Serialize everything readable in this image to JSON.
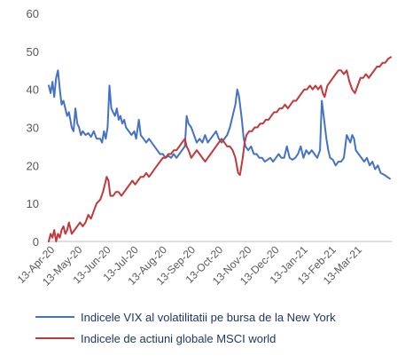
{
  "chart_data": {
    "type": "line",
    "ylim": [
      0,
      60
    ],
    "yticks": [
      0,
      10,
      20,
      30,
      40,
      50,
      60
    ],
    "grid": false,
    "legend_position": "bottom",
    "colors": {
      "vix": "#4472c4",
      "msci": "#c0393b",
      "axis": "#bfbfbf"
    },
    "x_tick_labels": [
      "13-Apr-20",
      "13-May-20",
      "13-Jun-20",
      "13-Jul-20",
      "13-Aug-20",
      "13-Sep-20",
      "13-Oct-20",
      "13-Nov-20",
      "13-Dec-20",
      "13-Jan-21",
      "13-Feb-21",
      "13-Mar-21"
    ],
    "series": [
      {
        "name": "Indicele VIX al volatilitatii pe bursa de la New York",
        "color": "#4472c4",
        "points": [
          [
            "2020-04-06",
            41
          ],
          [
            "2020-04-08",
            39
          ],
          [
            "2020-04-10",
            42
          ],
          [
            "2020-04-12",
            38
          ],
          [
            "2020-04-14",
            43
          ],
          [
            "2020-04-16",
            45
          ],
          [
            "2020-04-18",
            40
          ],
          [
            "2020-04-20",
            36
          ],
          [
            "2020-04-22",
            37
          ],
          [
            "2020-04-24",
            35
          ],
          [
            "2020-04-26",
            33
          ],
          [
            "2020-04-28",
            34
          ],
          [
            "2020-05-01",
            30
          ],
          [
            "2020-05-03",
            29
          ],
          [
            "2020-05-05",
            35
          ],
          [
            "2020-05-07",
            31
          ],
          [
            "2020-05-09",
            30
          ],
          [
            "2020-05-11",
            28
          ],
          [
            "2020-05-13",
            29
          ],
          [
            "2020-05-16",
            28
          ],
          [
            "2020-05-19",
            28.5
          ],
          [
            "2020-05-22",
            27.5
          ],
          [
            "2020-05-25",
            29
          ],
          [
            "2020-05-28",
            27
          ],
          [
            "2020-06-01",
            27
          ],
          [
            "2020-06-03",
            26
          ],
          [
            "2020-06-05",
            29
          ],
          [
            "2020-06-07",
            27
          ],
          [
            "2020-06-09",
            30
          ],
          [
            "2020-06-11",
            41
          ],
          [
            "2020-06-13",
            35
          ],
          [
            "2020-06-15",
            34
          ],
          [
            "2020-06-17",
            33
          ],
          [
            "2020-06-19",
            35
          ],
          [
            "2020-06-21",
            32
          ],
          [
            "2020-06-23",
            33
          ],
          [
            "2020-06-25",
            31
          ],
          [
            "2020-06-27",
            32
          ],
          [
            "2020-06-29",
            30
          ],
          [
            "2020-07-02",
            29
          ],
          [
            "2020-07-05",
            28
          ],
          [
            "2020-07-08",
            29
          ],
          [
            "2020-07-10",
            27
          ],
          [
            "2020-07-13",
            32
          ],
          [
            "2020-07-15",
            28
          ],
          [
            "2020-07-18",
            27
          ],
          [
            "2020-07-21",
            26
          ],
          [
            "2020-07-24",
            27
          ],
          [
            "2020-07-27",
            26
          ],
          [
            "2020-07-30",
            25
          ],
          [
            "2020-08-02",
            24
          ],
          [
            "2020-08-05",
            23
          ],
          [
            "2020-08-08",
            23
          ],
          [
            "2020-08-11",
            22
          ],
          [
            "2020-08-14",
            22.5
          ],
          [
            "2020-08-17",
            22
          ],
          [
            "2020-08-20",
            23
          ],
          [
            "2020-08-23",
            22
          ],
          [
            "2020-08-26",
            23
          ],
          [
            "2020-08-29",
            24
          ],
          [
            "2020-09-01",
            25
          ],
          [
            "2020-09-03",
            33
          ],
          [
            "2020-09-05",
            31
          ],
          [
            "2020-09-08",
            30
          ],
          [
            "2020-09-11",
            28
          ],
          [
            "2020-09-14",
            26
          ],
          [
            "2020-09-17",
            27
          ],
          [
            "2020-09-20",
            26
          ],
          [
            "2020-09-23",
            28
          ],
          [
            "2020-09-26",
            26
          ],
          [
            "2020-09-29",
            27
          ],
          [
            "2020-10-02",
            28
          ],
          [
            "2020-10-05",
            29
          ],
          [
            "2020-10-08",
            27
          ],
          [
            "2020-10-11",
            26
          ],
          [
            "2020-10-14",
            27
          ],
          [
            "2020-10-17",
            28
          ],
          [
            "2020-10-20",
            30
          ],
          [
            "2020-10-23",
            33
          ],
          [
            "2020-10-26",
            36
          ],
          [
            "2020-10-28",
            40
          ],
          [
            "2020-10-30",
            38
          ],
          [
            "2020-11-02",
            32
          ],
          [
            "2020-11-04",
            27
          ],
          [
            "2020-11-06",
            25
          ],
          [
            "2020-11-09",
            24
          ],
          [
            "2020-11-12",
            25
          ],
          [
            "2020-11-15",
            23
          ],
          [
            "2020-11-18",
            23
          ],
          [
            "2020-11-21",
            22
          ],
          [
            "2020-11-24",
            22
          ],
          [
            "2020-11-27",
            21
          ],
          [
            "2020-11-30",
            21.5
          ],
          [
            "2020-12-03",
            22
          ],
          [
            "2020-12-06",
            21
          ],
          [
            "2020-12-09",
            22
          ],
          [
            "2020-12-12",
            23
          ],
          [
            "2020-12-15",
            22
          ],
          [
            "2020-12-18",
            22
          ],
          [
            "2020-12-21",
            25
          ],
          [
            "2020-12-24",
            22
          ],
          [
            "2020-12-27",
            21.5
          ],
          [
            "2020-12-30",
            22
          ],
          [
            "2021-01-02",
            23
          ],
          [
            "2021-01-05",
            25
          ],
          [
            "2021-01-08",
            22
          ],
          [
            "2021-01-11",
            24
          ],
          [
            "2021-01-14",
            23
          ],
          [
            "2021-01-17",
            24
          ],
          [
            "2021-01-20",
            23
          ],
          [
            "2021-01-23",
            22
          ],
          [
            "2021-01-26",
            24
          ],
          [
            "2021-01-28",
            37
          ],
          [
            "2021-01-30",
            33
          ],
          [
            "2021-02-02",
            27
          ],
          [
            "2021-02-04",
            24
          ],
          [
            "2021-02-06",
            22
          ],
          [
            "2021-02-09",
            21.5
          ],
          [
            "2021-02-12",
            20
          ],
          [
            "2021-02-15",
            21
          ],
          [
            "2021-02-18",
            21
          ],
          [
            "2021-02-21",
            22
          ],
          [
            "2021-02-24",
            28
          ],
          [
            "2021-02-26",
            27
          ],
          [
            "2021-02-28",
            26
          ],
          [
            "2021-03-02",
            28
          ],
          [
            "2021-03-04",
            27
          ],
          [
            "2021-03-06",
            24
          ],
          [
            "2021-03-09",
            23
          ],
          [
            "2021-03-12",
            22
          ],
          [
            "2021-03-15",
            21
          ],
          [
            "2021-03-18",
            22
          ],
          [
            "2021-03-21",
            20
          ],
          [
            "2021-03-24",
            21
          ],
          [
            "2021-03-27",
            19
          ],
          [
            "2021-03-30",
            20
          ],
          [
            "2021-04-02",
            18
          ],
          [
            "2021-04-06",
            17.5
          ],
          [
            "2021-04-09",
            17
          ],
          [
            "2021-04-12",
            16.5
          ]
        ]
      },
      {
        "name": "Indicele de actiuni globale MSCI world",
        "color": "#c0393b",
        "points": [
          [
            "2020-04-06",
            0
          ],
          [
            "2020-04-08",
            2
          ],
          [
            "2020-04-10",
            1
          ],
          [
            "2020-04-12",
            3
          ],
          [
            "2020-04-14",
            0
          ],
          [
            "2020-04-16",
            2
          ],
          [
            "2020-04-18",
            1
          ],
          [
            "2020-04-20",
            3
          ],
          [
            "2020-04-22",
            4
          ],
          [
            "2020-04-24",
            2
          ],
          [
            "2020-04-26",
            3
          ],
          [
            "2020-04-28",
            5
          ],
          [
            "2020-05-01",
            2
          ],
          [
            "2020-05-04",
            3
          ],
          [
            "2020-05-07",
            4
          ],
          [
            "2020-05-10",
            5
          ],
          [
            "2020-05-13",
            4
          ],
          [
            "2020-05-16",
            5
          ],
          [
            "2020-05-19",
            7
          ],
          [
            "2020-05-22",
            6
          ],
          [
            "2020-05-25",
            8
          ],
          [
            "2020-05-28",
            10
          ],
          [
            "2020-06-01",
            11
          ],
          [
            "2020-06-04",
            13
          ],
          [
            "2020-06-06",
            15
          ],
          [
            "2020-06-08",
            17
          ],
          [
            "2020-06-10",
            16
          ],
          [
            "2020-06-12",
            12
          ],
          [
            "2020-06-15",
            12
          ],
          [
            "2020-06-18",
            13
          ],
          [
            "2020-06-21",
            13
          ],
          [
            "2020-06-24",
            12
          ],
          [
            "2020-06-27",
            13
          ],
          [
            "2020-06-30",
            14
          ],
          [
            "2020-07-03",
            15
          ],
          [
            "2020-07-06",
            16
          ],
          [
            "2020-07-09",
            15
          ],
          [
            "2020-07-12",
            16
          ],
          [
            "2020-07-15",
            17
          ],
          [
            "2020-07-18",
            17
          ],
          [
            "2020-07-21",
            18
          ],
          [
            "2020-07-24",
            17
          ],
          [
            "2020-07-27",
            18
          ],
          [
            "2020-07-30",
            19
          ],
          [
            "2020-08-02",
            20
          ],
          [
            "2020-08-05",
            21
          ],
          [
            "2020-08-08",
            22
          ],
          [
            "2020-08-11",
            22
          ],
          [
            "2020-08-14",
            23
          ],
          [
            "2020-08-17",
            23
          ],
          [
            "2020-08-20",
            24
          ],
          [
            "2020-08-23",
            24
          ],
          [
            "2020-08-26",
            25
          ],
          [
            "2020-08-29",
            26
          ],
          [
            "2020-09-01",
            27
          ],
          [
            "2020-09-03",
            25
          ],
          [
            "2020-09-05",
            24
          ],
          [
            "2020-09-08",
            22
          ],
          [
            "2020-09-11",
            23
          ],
          [
            "2020-09-14",
            24
          ],
          [
            "2020-09-17",
            23
          ],
          [
            "2020-09-20",
            22
          ],
          [
            "2020-09-23",
            21
          ],
          [
            "2020-09-26",
            22
          ],
          [
            "2020-09-29",
            23
          ],
          [
            "2020-10-02",
            24
          ],
          [
            "2020-10-05",
            25
          ],
          [
            "2020-10-08",
            26
          ],
          [
            "2020-10-11",
            27
          ],
          [
            "2020-10-14",
            26
          ],
          [
            "2020-10-17",
            25
          ],
          [
            "2020-10-20",
            25
          ],
          [
            "2020-10-23",
            24
          ],
          [
            "2020-10-26",
            22
          ],
          [
            "2020-10-29",
            18
          ],
          [
            "2020-10-31",
            17.5
          ],
          [
            "2020-11-03",
            22
          ],
          [
            "2020-11-05",
            26
          ],
          [
            "2020-11-07",
            28
          ],
          [
            "2020-11-10",
            29
          ],
          [
            "2020-11-13",
            29
          ],
          [
            "2020-11-16",
            30
          ],
          [
            "2020-11-19",
            30
          ],
          [
            "2020-11-22",
            31
          ],
          [
            "2020-11-25",
            31
          ],
          [
            "2020-11-28",
            32
          ],
          [
            "2020-12-01",
            32
          ],
          [
            "2020-12-04",
            33
          ],
          [
            "2020-12-07",
            34
          ],
          [
            "2020-12-10",
            34
          ],
          [
            "2020-12-13",
            35
          ],
          [
            "2020-12-16",
            35
          ],
          [
            "2020-12-19",
            36
          ],
          [
            "2020-12-22",
            35
          ],
          [
            "2020-12-25",
            36
          ],
          [
            "2020-12-28",
            37
          ],
          [
            "2020-12-31",
            37
          ],
          [
            "2021-01-03",
            38
          ],
          [
            "2021-01-06",
            39
          ],
          [
            "2021-01-09",
            40
          ],
          [
            "2021-01-12",
            40
          ],
          [
            "2021-01-15",
            41
          ],
          [
            "2021-01-18",
            40
          ],
          [
            "2021-01-21",
            41
          ],
          [
            "2021-01-24",
            40
          ],
          [
            "2021-01-27",
            41
          ],
          [
            "2021-01-29",
            39
          ],
          [
            "2021-01-31",
            38
          ],
          [
            "2021-02-03",
            41
          ],
          [
            "2021-02-06",
            42
          ],
          [
            "2021-02-09",
            43
          ],
          [
            "2021-02-12",
            44
          ],
          [
            "2021-02-15",
            45
          ],
          [
            "2021-02-18",
            45
          ],
          [
            "2021-02-21",
            44
          ],
          [
            "2021-02-24",
            45
          ],
          [
            "2021-02-27",
            42
          ],
          [
            "2021-03-02",
            40
          ],
          [
            "2021-03-05",
            39
          ],
          [
            "2021-03-08",
            41
          ],
          [
            "2021-03-11",
            43
          ],
          [
            "2021-03-14",
            43
          ],
          [
            "2021-03-17",
            44
          ],
          [
            "2021-03-20",
            43
          ],
          [
            "2021-03-23",
            44
          ],
          [
            "2021-03-26",
            45
          ],
          [
            "2021-03-29",
            46
          ],
          [
            "2021-04-01",
            46
          ],
          [
            "2021-04-04",
            47
          ],
          [
            "2021-04-07",
            47
          ],
          [
            "2021-04-10",
            48
          ],
          [
            "2021-04-13",
            48.5
          ]
        ]
      }
    ]
  }
}
